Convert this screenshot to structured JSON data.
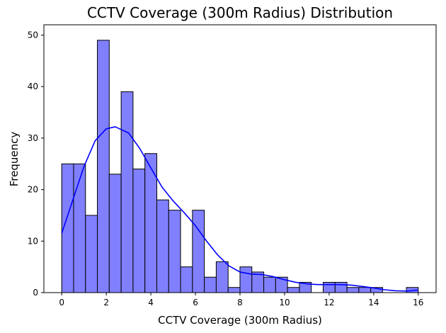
{
  "chart_data": {
    "type": "bar",
    "title": "CCTV Coverage (300m Radius) Distribution",
    "xlabel": "CCTV Coverage (300m Radius)",
    "ylabel": "Frequency",
    "xlim": [
      -0.8,
      16.8
    ],
    "ylim": [
      0,
      52
    ],
    "x_ticks": [
      0,
      2,
      4,
      6,
      8,
      10,
      12,
      14,
      16
    ],
    "y_ticks": [
      0,
      10,
      20,
      30,
      40,
      50
    ],
    "bin_width": 0.5333,
    "bins": [
      {
        "start": 0.0,
        "end": 0.533,
        "count": 25
      },
      {
        "start": 0.533,
        "end": 1.067,
        "count": 25
      },
      {
        "start": 1.067,
        "end": 1.6,
        "count": 15
      },
      {
        "start": 1.6,
        "end": 2.133,
        "count": 49
      },
      {
        "start": 2.133,
        "end": 2.667,
        "count": 23
      },
      {
        "start": 2.667,
        "end": 3.2,
        "count": 39
      },
      {
        "start": 3.2,
        "end": 3.733,
        "count": 24
      },
      {
        "start": 3.733,
        "end": 4.267,
        "count": 27
      },
      {
        "start": 4.267,
        "end": 4.8,
        "count": 18
      },
      {
        "start": 4.8,
        "end": 5.333,
        "count": 16
      },
      {
        "start": 5.333,
        "end": 5.867,
        "count": 5
      },
      {
        "start": 5.867,
        "end": 6.4,
        "count": 16
      },
      {
        "start": 6.4,
        "end": 6.933,
        "count": 3
      },
      {
        "start": 6.933,
        "end": 7.467,
        "count": 6
      },
      {
        "start": 7.467,
        "end": 8.0,
        "count": 1
      },
      {
        "start": 8.0,
        "end": 8.533,
        "count": 5
      },
      {
        "start": 8.533,
        "end": 9.067,
        "count": 4
      },
      {
        "start": 9.067,
        "end": 9.6,
        "count": 3
      },
      {
        "start": 9.6,
        "end": 10.133,
        "count": 3
      },
      {
        "start": 10.133,
        "end": 10.667,
        "count": 1
      },
      {
        "start": 10.667,
        "end": 11.2,
        "count": 2
      },
      {
        "start": 11.2,
        "end": 11.733,
        "count": 0
      },
      {
        "start": 11.733,
        "end": 12.267,
        "count": 2
      },
      {
        "start": 12.267,
        "end": 12.8,
        "count": 2
      },
      {
        "start": 12.8,
        "end": 13.333,
        "count": 1
      },
      {
        "start": 13.333,
        "end": 13.867,
        "count": 1
      },
      {
        "start": 13.867,
        "end": 14.4,
        "count": 1
      },
      {
        "start": 14.4,
        "end": 14.933,
        "count": 0
      },
      {
        "start": 14.933,
        "end": 15.467,
        "count": 0
      },
      {
        "start": 15.467,
        "end": 16.0,
        "count": 1
      }
    ],
    "kde": {
      "x": [
        0.0,
        0.5,
        1.0,
        1.5,
        2.0,
        2.4,
        3.0,
        3.5,
        4.0,
        4.5,
        5.0,
        5.5,
        6.0,
        6.5,
        7.0,
        7.5,
        8.0,
        8.5,
        9.0,
        9.5,
        10.0,
        10.5,
        11.0,
        11.5,
        12.0,
        12.5,
        13.0,
        13.5,
        14.0,
        14.5,
        15.0,
        15.5,
        16.0
      ],
      "y": [
        11.5,
        18,
        24.5,
        29.5,
        31.8,
        32.2,
        31.0,
        28.0,
        24.2,
        20.5,
        17.8,
        15.5,
        13.0,
        10.0,
        7.3,
        5.2,
        4.0,
        3.6,
        3.5,
        3.1,
        2.5,
        2.0,
        1.7,
        1.55,
        1.55,
        1.55,
        1.45,
        1.2,
        0.9,
        0.55,
        0.35,
        0.3,
        0.5
      ]
    },
    "grid": false,
    "legend": "none",
    "colors": {
      "bar_fill": "#8080ff",
      "bar_edge": "#000000",
      "kde_line": "#0000ff"
    }
  }
}
